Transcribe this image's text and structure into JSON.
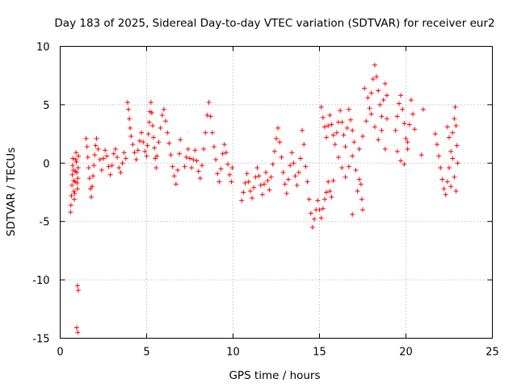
{
  "chart_data": {
    "type": "scatter",
    "title": "Day 183 of 2025, Sidereal Day-to-day VTEC variation (SDTVAR) for receiver eur2",
    "xlabel": "GPS time / hours",
    "ylabel": "SDTVAR / TECUs",
    "xlim": [
      0,
      25
    ],
    "ylim": [
      -15,
      10
    ],
    "xticks": [
      0,
      5,
      10,
      15,
      20,
      25
    ],
    "yticks": [
      -15,
      -10,
      -5,
      0,
      5,
      10
    ],
    "xtick_labels": [
      "0",
      "5",
      "10",
      "15",
      "20",
      "25"
    ],
    "ytick_labels": [
      "-15",
      "-10",
      "-5",
      "0",
      "5",
      "10"
    ],
    "grid": true,
    "marker": "+",
    "marker_color": "#ff0000",
    "series": [
      {
        "name": "SDTVAR",
        "points": [
          [
            0.6,
            -4.2
          ],
          [
            0.62,
            -3.6
          ],
          [
            0.65,
            -2.8
          ],
          [
            0.68,
            -1.9
          ],
          [
            0.7,
            -1.0
          ],
          [
            0.72,
            -0.2
          ],
          [
            0.74,
            0.4
          ],
          [
            0.76,
            -0.6
          ],
          [
            0.78,
            -1.5
          ],
          [
            0.8,
            -2.4
          ],
          [
            0.82,
            -3.1
          ],
          [
            0.84,
            -2.6
          ],
          [
            0.86,
            -1.6
          ],
          [
            0.88,
            -0.7
          ],
          [
            0.9,
            0.3
          ],
          [
            0.92,
            0.9
          ],
          [
            0.94,
            0.1
          ],
          [
            0.96,
            -0.8
          ],
          [
            0.98,
            -1.7
          ],
          [
            1.0,
            -2.2
          ],
          [
            1.02,
            -1.3
          ],
          [
            1.04,
            -0.4
          ],
          [
            1.06,
            0.6
          ],
          [
            1.0,
            -10.5
          ],
          [
            1.05,
            -10.9
          ],
          [
            0.95,
            -14.1
          ],
          [
            1.02,
            -14.5
          ],
          [
            1.5,
            2.1
          ],
          [
            1.55,
            1.4
          ],
          [
            1.6,
            0.5
          ],
          [
            1.65,
            -0.4
          ],
          [
            1.7,
            -1.3
          ],
          [
            1.75,
            -2.2
          ],
          [
            1.8,
            -2.9
          ],
          [
            1.85,
            -2.0
          ],
          [
            1.9,
            -1.1
          ],
          [
            1.95,
            -0.2
          ],
          [
            2.0,
            0.7
          ],
          [
            2.05,
            1.5
          ],
          [
            2.1,
            2.1
          ],
          [
            2.2,
            1.2
          ],
          [
            2.3,
            0.3
          ],
          [
            2.4,
            -0.6
          ],
          [
            2.5,
            0.4
          ],
          [
            2.6,
            1.1
          ],
          [
            2.7,
            0.6
          ],
          [
            2.8,
            -0.3
          ],
          [
            2.9,
            -1.0
          ],
          [
            3.0,
            -0.2
          ],
          [
            3.1,
            0.8
          ],
          [
            3.2,
            1.2
          ],
          [
            3.3,
            0.5
          ],
          [
            3.4,
            -0.4
          ],
          [
            3.5,
            -0.8
          ],
          [
            3.6,
            0.0
          ],
          [
            3.7,
            0.9
          ],
          [
            3.8,
            0.4
          ],
          [
            3.9,
            5.2
          ],
          [
            3.95,
            4.6
          ],
          [
            4.0,
            3.8
          ],
          [
            4.05,
            3.0
          ],
          [
            4.1,
            2.3
          ],
          [
            4.2,
            1.6
          ],
          [
            4.3,
            0.9
          ],
          [
            4.4,
            0.3
          ],
          [
            4.5,
            1.1
          ],
          [
            4.6,
            1.9
          ],
          [
            4.7,
            2.6
          ],
          [
            4.8,
            1.8
          ],
          [
            4.9,
            1.0
          ],
          [
            5.0,
            0.6
          ],
          [
            5.05,
            1.5
          ],
          [
            5.1,
            2.5
          ],
          [
            5.15,
            3.5
          ],
          [
            5.2,
            4.4
          ],
          [
            5.25,
            5.2
          ],
          [
            5.3,
            4.3
          ],
          [
            5.35,
            3.2
          ],
          [
            5.4,
            2.2
          ],
          [
            5.45,
            1.3
          ],
          [
            5.5,
            0.4
          ],
          [
            5.55,
            -0.4
          ],
          [
            5.6,
            0.6
          ],
          [
            5.7,
            1.8
          ],
          [
            5.8,
            3.0
          ],
          [
            5.9,
            4.1
          ],
          [
            6.0,
            4.6
          ],
          [
            6.1,
            3.6
          ],
          [
            6.2,
            2.6
          ],
          [
            6.3,
            1.7
          ],
          [
            6.4,
            0.7
          ],
          [
            6.5,
            -0.3
          ],
          [
            6.6,
            -1.1
          ],
          [
            6.7,
            -1.8
          ],
          [
            6.8,
            -0.6
          ],
          [
            6.9,
            0.8
          ],
          [
            6.95,
            2.0
          ],
          [
            7.2,
            -0.3
          ],
          [
            7.3,
            0.5
          ],
          [
            7.4,
            1.2
          ],
          [
            7.5,
            0.4
          ],
          [
            7.6,
            -0.4
          ],
          [
            7.7,
            0.3
          ],
          [
            7.8,
            1.1
          ],
          [
            7.9,
            0.2
          ],
          [
            8.0,
            -0.7
          ],
          [
            8.1,
            -1.3
          ],
          [
            8.2,
            -0.2
          ],
          [
            8.3,
            1.2
          ],
          [
            8.4,
            2.6
          ],
          [
            8.5,
            4.1
          ],
          [
            8.6,
            5.2
          ],
          [
            8.7,
            4.0
          ],
          [
            8.8,
            2.6
          ],
          [
            8.9,
            1.4
          ],
          [
            9.0,
            0.3
          ],
          [
            9.1,
            -0.9
          ],
          [
            9.2,
            -1.6
          ],
          [
            9.3,
            -0.5
          ],
          [
            9.4,
            0.8
          ],
          [
            9.5,
            1.6
          ],
          [
            9.6,
            0.9
          ],
          [
            9.7,
            -0.1
          ],
          [
            9.8,
            -1.0
          ],
          [
            9.9,
            -1.6
          ],
          [
            9.95,
            -0.4
          ],
          [
            10.5,
            -3.2
          ],
          [
            10.6,
            -2.5
          ],
          [
            10.7,
            -1.7
          ],
          [
            10.8,
            -0.9
          ],
          [
            10.9,
            -1.6
          ],
          [
            11.0,
            -2.4
          ],
          [
            11.1,
            -3.0
          ],
          [
            11.2,
            -2.1
          ],
          [
            11.3,
            -1.2
          ],
          [
            11.4,
            -0.4
          ],
          [
            11.5,
            -1.1
          ],
          [
            11.6,
            -1.9
          ],
          [
            11.7,
            -2.7
          ],
          [
            11.8,
            -1.8
          ],
          [
            11.9,
            -0.8
          ],
          [
            12.0,
            -1.5
          ],
          [
            12.1,
            -2.3
          ],
          [
            12.2,
            -1.2
          ],
          [
            12.3,
            -0.1
          ],
          [
            12.4,
            1.0
          ],
          [
            12.5,
            2.1
          ],
          [
            12.6,
            3.0
          ],
          [
            12.7,
            1.8
          ],
          [
            12.8,
            0.5
          ],
          [
            12.9,
            -0.8
          ],
          [
            13.0,
            -1.8
          ],
          [
            13.1,
            -2.6
          ],
          [
            13.2,
            -1.4
          ],
          [
            13.3,
            -0.2
          ],
          [
            13.4,
            0.9
          ],
          [
            13.5,
            0.0
          ],
          [
            13.6,
            -1.1
          ],
          [
            13.7,
            -1.9
          ],
          [
            13.8,
            -0.8
          ],
          [
            13.9,
            0.4
          ],
          [
            14.0,
            2.8
          ],
          [
            14.1,
            1.6
          ],
          [
            14.2,
            -0.3
          ],
          [
            14.3,
            -1.6
          ],
          [
            14.4,
            -3.1
          ],
          [
            14.5,
            -4.3
          ],
          [
            14.6,
            -5.5
          ],
          [
            14.7,
            -4.8
          ],
          [
            14.8,
            -4.0
          ],
          [
            14.9,
            -3.2
          ],
          [
            15.0,
            -4.0
          ],
          [
            15.1,
            -4.7
          ],
          [
            15.2,
            -3.9
          ],
          [
            15.3,
            -3.1
          ],
          [
            15.4,
            -2.5
          ],
          [
            15.5,
            -1.6
          ],
          [
            15.6,
            -2.4
          ],
          [
            15.7,
            -2.9
          ],
          [
            15.8,
            -1.5
          ],
          [
            15.1,
            4.8
          ],
          [
            15.2,
            3.9
          ],
          [
            15.3,
            3.1
          ],
          [
            15.4,
            2.2
          ],
          [
            15.5,
            3.2
          ],
          [
            15.6,
            4.1
          ],
          [
            15.7,
            3.3
          ],
          [
            15.8,
            2.4
          ],
          [
            15.9,
            1.6
          ],
          [
            16.0,
            2.6
          ],
          [
            16.1,
            3.5
          ],
          [
            16.2,
            4.5
          ],
          [
            16.3,
            3.5
          ],
          [
            16.4,
            2.4
          ],
          [
            16.5,
            1.4
          ],
          [
            16.6,
            3.0
          ],
          [
            16.7,
            4.6
          ],
          [
            16.8,
            3.7
          ],
          [
            16.9,
            2.8
          ],
          [
            17.0,
            1.8
          ],
          [
            16.1,
            0.5
          ],
          [
            16.3,
            -0.4
          ],
          [
            16.5,
            -1.2
          ],
          [
            16.7,
            -0.3
          ],
          [
            16.9,
            0.6
          ],
          [
            17.1,
            -0.6
          ],
          [
            17.3,
            -1.4
          ],
          [
            16.9,
            -4.4
          ],
          [
            17.4,
            -1.8
          ],
          [
            17.45,
            -3.1
          ],
          [
            17.5,
            -4.0
          ],
          [
            17.2,
            -2.4
          ],
          [
            17.3,
            1.2
          ],
          [
            17.5,
            2.3
          ],
          [
            17.7,
            3.6
          ],
          [
            17.9,
            4.7
          ],
          [
            18.0,
            6.0
          ],
          [
            18.1,
            7.2
          ],
          [
            18.2,
            8.4
          ],
          [
            18.3,
            7.4
          ],
          [
            18.4,
            6.2
          ],
          [
            18.5,
            5.0
          ],
          [
            18.6,
            4.0
          ],
          [
            18.7,
            5.4
          ],
          [
            18.8,
            6.8
          ],
          [
            18.9,
            5.8
          ],
          [
            17.6,
            6.4
          ],
          [
            17.8,
            5.6
          ],
          [
            18.0,
            4.2
          ],
          [
            18.2,
            3.1
          ],
          [
            18.4,
            2.0
          ],
          [
            18.6,
            2.8
          ],
          [
            18.8,
            1.2
          ],
          [
            18.9,
            3.8
          ],
          [
            19.4,
            2.8
          ],
          [
            19.5,
            4.0
          ],
          [
            19.6,
            5.1
          ],
          [
            19.7,
            5.8
          ],
          [
            19.8,
            4.6
          ],
          [
            19.9,
            3.4
          ],
          [
            20.0,
            2.1
          ],
          [
            20.1,
            1.2
          ],
          [
            20.2,
            3.3
          ],
          [
            20.3,
            5.4
          ],
          [
            20.4,
            4.2
          ],
          [
            20.5,
            2.9
          ],
          [
            19.5,
            1.0
          ],
          [
            19.7,
            0.2
          ],
          [
            19.9,
            -0.1
          ],
          [
            20.1,
            1.8
          ],
          [
            20.9,
            0.7
          ],
          [
            21.0,
            4.6
          ],
          [
            21.7,
            2.5
          ],
          [
            21.8,
            1.6
          ],
          [
            21.9,
            0.6
          ],
          [
            22.0,
            -0.4
          ],
          [
            22.1,
            -1.4
          ],
          [
            22.2,
            -2.2
          ],
          [
            22.3,
            -2.7
          ],
          [
            22.4,
            -1.6
          ],
          [
            22.5,
            -0.4
          ],
          [
            22.6,
            1.0
          ],
          [
            22.7,
            2.6
          ],
          [
            22.8,
            3.8
          ],
          [
            22.85,
            4.8
          ],
          [
            22.9,
            3.2
          ],
          [
            22.95,
            1.5
          ],
          [
            23.0,
            0.0
          ],
          [
            22.6,
            -2.0
          ],
          [
            22.8,
            -1.2
          ],
          [
            22.9,
            -2.4
          ],
          [
            22.7,
            0.4
          ],
          [
            22.5,
            2.2
          ],
          [
            22.4,
            3.1
          ]
        ]
      }
    ]
  }
}
